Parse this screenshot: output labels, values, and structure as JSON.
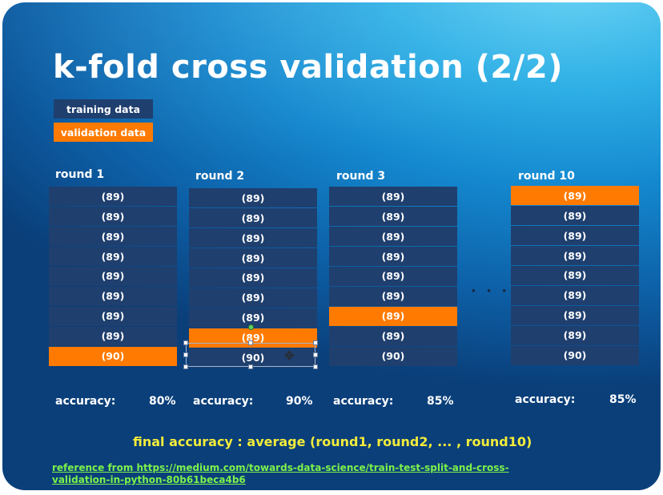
{
  "slide": {
    "title": "k-fold cross validation (2/2)",
    "legend": {
      "training_label": "training data",
      "validation_label": "validation data"
    },
    "colors": {
      "training": "#1f3f6e",
      "validation": "#ff7a00",
      "final_text": "#f2ec3a",
      "link": "#7cf24a"
    },
    "rounds": [
      {
        "label": "round 1",
        "cells": [
          "(89)",
          "(89)",
          "(89)",
          "(89)",
          "(89)",
          "(89)",
          "(89)",
          "(89)",
          "(90)"
        ],
        "validation_index": 8,
        "accuracy_label": "accuracy:",
        "accuracy_value": "80%"
      },
      {
        "label": "round 2",
        "cells": [
          "(89)",
          "(89)",
          "(89)",
          "(89)",
          "(89)",
          "(89)",
          "(89)",
          "(89)",
          "(90)"
        ],
        "validation_index": 7,
        "accuracy_label": "accuracy:",
        "accuracy_value": "90%"
      },
      {
        "label": "round 3",
        "cells": [
          "(89)",
          "(89)",
          "(89)",
          "(89)",
          "(89)",
          "(89)",
          "(89)",
          "(89)",
          "(90)"
        ],
        "validation_index": 6,
        "accuracy_label": "accuracy:",
        "accuracy_value": "85%"
      },
      {
        "label": "round 10",
        "cells": [
          "(89)",
          "(89)",
          "(89)",
          "(89)",
          "(89)",
          "(89)",
          "(89)",
          "(89)",
          "(90)"
        ],
        "validation_index": 0,
        "accuracy_label": "accuracy:",
        "accuracy_value": "85%"
      }
    ],
    "ellipsis": "· · ·",
    "final_accuracy": "final accuracy : average (round1, round2, ... , round10)",
    "reference_text": "reference from https://medium.com/towards-data-science/train-test-split-and-cross-validation-in-python-80b61beca4b6"
  }
}
